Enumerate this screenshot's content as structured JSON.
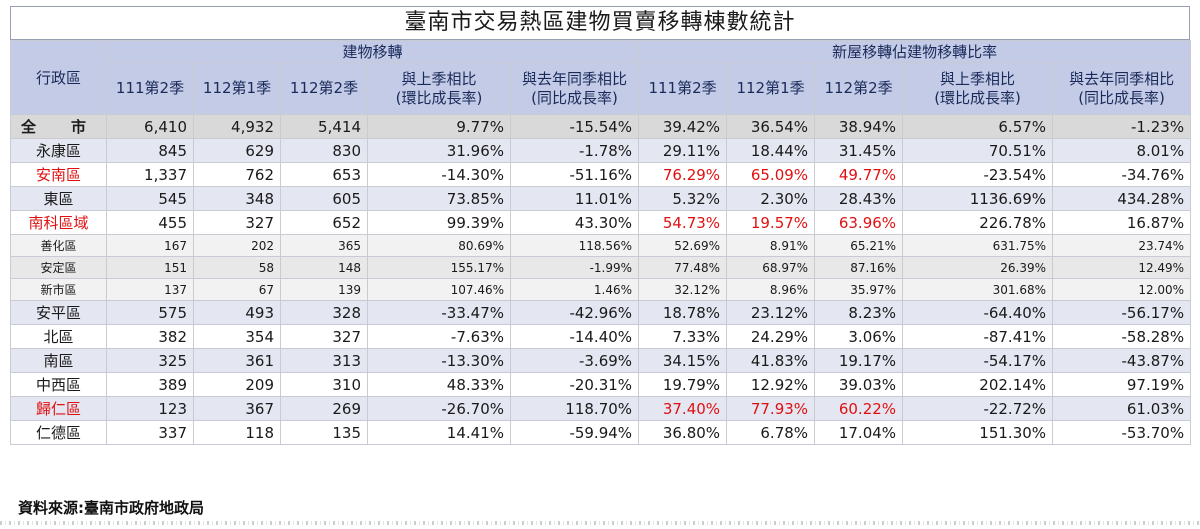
{
  "title": "臺南市交易熱區建物買賣移轉棟數統計",
  "header": {
    "district": "行政區",
    "group1": "建物移轉",
    "group2": "新屋移轉佔建物移轉比率",
    "cols": [
      "111第2季",
      "112第1季",
      "112第2季",
      "與上季相比\n(環比成長率)",
      "與去年同季相比\n(同比成長率)",
      "111第2季",
      "112第1季",
      "112第2季",
      "與上季相比\n(環比成長率)",
      "與去年同季相比\n(同比成長率)"
    ]
  },
  "rows": [
    {
      "name": "全　市",
      "style": "total",
      "cells": [
        "6,410",
        "4,932",
        "5,414",
        "9.77%",
        "-15.54%",
        "39.42%",
        "36.54%",
        "38.94%",
        "6.57%",
        "-1.23%"
      ]
    },
    {
      "name": "永康區",
      "style": "even",
      "cells": [
        "845",
        "629",
        "830",
        "31.96%",
        "-1.78%",
        "29.11%",
        "18.44%",
        "31.45%",
        "70.51%",
        "8.01%"
      ]
    },
    {
      "name": "安南區",
      "style": "odd",
      "nameRed": true,
      "red": [
        5,
        6,
        7
      ],
      "cells": [
        "1,337",
        "762",
        "653",
        "-14.30%",
        "-51.16%",
        "76.29%",
        "65.09%",
        "49.77%",
        "-23.54%",
        "-34.76%"
      ]
    },
    {
      "name": "東區",
      "style": "even",
      "cells": [
        "545",
        "348",
        "605",
        "73.85%",
        "11.01%",
        "5.32%",
        "2.30%",
        "28.43%",
        "1136.69%",
        "434.28%"
      ]
    },
    {
      "name": "南科區域",
      "style": "odd",
      "nameRed": true,
      "red": [
        5,
        6,
        7
      ],
      "cells": [
        "455",
        "327",
        "652",
        "99.39%",
        "43.30%",
        "54.73%",
        "19.57%",
        "63.96%",
        "226.78%",
        "16.87%"
      ]
    },
    {
      "name": "善化區",
      "style": "sub lt",
      "cells": [
        "167",
        "202",
        "365",
        "80.69%",
        "118.56%",
        "52.69%",
        "8.91%",
        "65.21%",
        "631.75%",
        "23.74%"
      ]
    },
    {
      "name": "安定區",
      "style": "sub",
      "cells": [
        "151",
        "58",
        "148",
        "155.17%",
        "-1.99%",
        "77.48%",
        "68.97%",
        "87.16%",
        "26.39%",
        "12.49%"
      ]
    },
    {
      "name": "新市區",
      "style": "sub lt",
      "cells": [
        "137",
        "67",
        "139",
        "107.46%",
        "1.46%",
        "32.12%",
        "8.96%",
        "35.97%",
        "301.68%",
        "12.00%"
      ]
    },
    {
      "name": "安平區",
      "style": "even",
      "cells": [
        "575",
        "493",
        "328",
        "-33.47%",
        "-42.96%",
        "18.78%",
        "23.12%",
        "8.23%",
        "-64.40%",
        "-56.17%"
      ]
    },
    {
      "name": "北區",
      "style": "odd",
      "cells": [
        "382",
        "354",
        "327",
        "-7.63%",
        "-14.40%",
        "7.33%",
        "24.29%",
        "3.06%",
        "-87.41%",
        "-58.28%"
      ]
    },
    {
      "name": "南區",
      "style": "even",
      "cells": [
        "325",
        "361",
        "313",
        "-13.30%",
        "-3.69%",
        "34.15%",
        "41.83%",
        "19.17%",
        "-54.17%",
        "-43.87%"
      ]
    },
    {
      "name": "中西區",
      "style": "odd",
      "cells": [
        "389",
        "209",
        "310",
        "48.33%",
        "-20.31%",
        "19.79%",
        "12.92%",
        "39.03%",
        "202.14%",
        "97.19%"
      ]
    },
    {
      "name": "歸仁區",
      "style": "even",
      "nameRed": true,
      "red": [
        5,
        6,
        7
      ],
      "cells": [
        "123",
        "367",
        "269",
        "-26.70%",
        "118.70%",
        "37.40%",
        "77.93%",
        "60.22%",
        "-22.72%",
        "61.03%"
      ]
    },
    {
      "name": "仁德區",
      "style": "odd",
      "cells": [
        "337",
        "118",
        "135",
        "14.41%",
        "-59.94%",
        "36.80%",
        "6.78%",
        "17.04%",
        "151.30%",
        "-53.70%"
      ]
    }
  ],
  "source": "資料來源:臺南市政府地政局"
}
